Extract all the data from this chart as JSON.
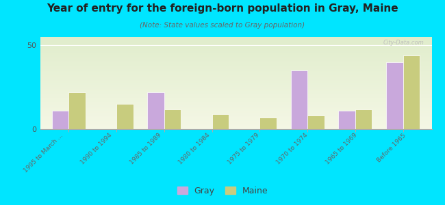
{
  "title": "Year of entry for the foreign-born population in Gray, Maine",
  "subtitle": "(Note: State values scaled to Gray population)",
  "categories": [
    "1995 to March ...",
    "1990 to 1994",
    "1985 to 1989",
    "1980 to 1984",
    "1975 to 1979",
    "1970 to 1974",
    "1965 to 1969",
    "Before 1965"
  ],
  "gray_values": [
    11,
    0,
    22,
    0,
    0,
    35,
    11,
    40
  ],
  "maine_values": [
    22,
    15,
    12,
    9,
    7,
    8,
    12,
    44
  ],
  "gray_color": "#c9a8dc",
  "maine_color": "#c8cc7e",
  "background_color": "#00e5ff",
  "plot_bg": "#eef2e0",
  "ylim": [
    0,
    55
  ],
  "yticks": [
    0,
    50
  ],
  "watermark": "City-Data.com",
  "legend_gray": "Gray",
  "legend_maine": "Maine",
  "bar_width": 0.35
}
